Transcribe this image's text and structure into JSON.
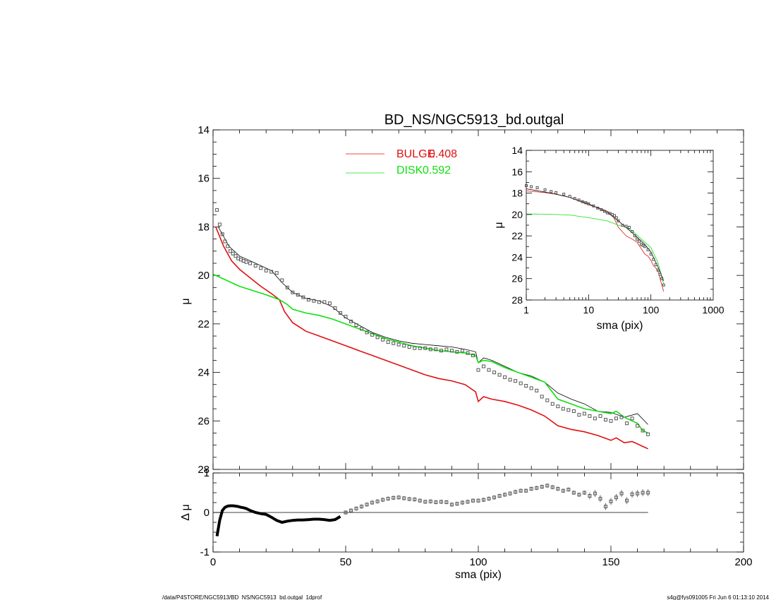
{
  "chart_data": [
    {
      "type": "line",
      "title": "BD_NS/NGC5913_bd.outgal",
      "ylabel": "μ",
      "xlim": [
        0,
        200
      ],
      "ylim": [
        28,
        14
      ],
      "yticks": [
        "14",
        "16",
        "18",
        "20",
        "22",
        "24",
        "26",
        "28"
      ],
      "legend": [
        {
          "label": "BULGE",
          "value": "0.408",
          "color": "#e01010"
        },
        {
          "label": "DISK",
          "value": "0.592",
          "color": "#10e010"
        }
      ],
      "series": [
        {
          "name": "data",
          "style": "squares",
          "color": "#555555",
          "x": [
            1.5,
            2.5,
            3.5,
            4.5,
            5.5,
            6.5,
            7.5,
            8.5,
            9.5,
            10.5,
            11.5,
            12.5,
            14,
            16,
            18,
            20,
            22,
            24,
            26,
            28,
            30,
            32,
            34,
            36,
            38,
            40,
            42,
            44,
            46,
            48,
            50,
            52,
            54,
            56,
            58,
            60,
            62,
            64,
            66,
            68,
            70,
            72,
            74,
            76,
            78,
            80,
            82,
            84,
            86,
            88,
            90,
            92,
            94,
            96,
            98,
            100,
            102,
            104,
            106,
            108,
            110,
            112,
            114,
            116,
            118,
            120,
            122,
            124,
            126,
            128,
            130,
            132,
            134,
            136,
            138,
            140,
            142,
            144,
            146,
            148,
            150,
            152,
            154,
            156,
            158,
            160,
            162,
            164
          ],
          "y": [
            17.3,
            17.9,
            18.3,
            18.6,
            18.8,
            19.0,
            19.1,
            19.2,
            19.3,
            19.35,
            19.4,
            19.45,
            19.5,
            19.6,
            19.7,
            19.8,
            19.85,
            19.9,
            20.2,
            20.5,
            20.7,
            20.8,
            20.9,
            21.0,
            21.05,
            21.1,
            21.1,
            21.15,
            21.35,
            21.55,
            21.7,
            21.9,
            22.05,
            22.2,
            22.35,
            22.45,
            22.55,
            22.65,
            22.75,
            22.8,
            22.85,
            22.9,
            22.95,
            23.0,
            23.0,
            23.0,
            23.05,
            23.05,
            23.1,
            23.05,
            23.1,
            23.15,
            23.1,
            23.2,
            23.3,
            23.9,
            23.75,
            23.9,
            24.0,
            24.1,
            24.2,
            24.3,
            24.35,
            24.45,
            24.55,
            24.65,
            24.75,
            25.0,
            25.15,
            25.3,
            25.4,
            25.5,
            25.55,
            25.6,
            25.75,
            25.7,
            25.8,
            25.9,
            25.8,
            25.95,
            26.0,
            25.9,
            25.85,
            26.1,
            25.9,
            26.2,
            26.4,
            26.55
          ]
        },
        {
          "name": "model",
          "style": "line",
          "color": "#000000",
          "x": [
            2,
            6,
            10,
            14,
            18,
            22,
            26,
            30,
            35,
            40,
            45,
            50,
            55,
            60,
            65,
            70,
            75,
            80,
            85,
            90,
            95,
            99,
            100,
            102,
            105,
            110,
            115,
            120,
            125,
            130,
            135,
            140,
            145,
            150,
            155,
            160,
            164
          ],
          "y": [
            18.0,
            18.8,
            19.2,
            19.4,
            19.6,
            19.8,
            20.3,
            20.7,
            20.95,
            21.05,
            21.3,
            21.75,
            22.05,
            22.35,
            22.55,
            22.7,
            22.8,
            22.85,
            22.9,
            22.95,
            23.05,
            23.15,
            23.6,
            23.4,
            23.5,
            23.75,
            24.0,
            24.15,
            24.4,
            24.85,
            25.1,
            25.3,
            25.6,
            25.65,
            25.85,
            25.7,
            26.15
          ]
        },
        {
          "name": "bulge",
          "style": "line",
          "color": "#e01010",
          "x": [
            1,
            4,
            7,
            10,
            14,
            18,
            22,
            25,
            27,
            30,
            35,
            40,
            45,
            50,
            55,
            60,
            65,
            70,
            75,
            80,
            85,
            90,
            95,
            99,
            100,
            102,
            105,
            110,
            115,
            120,
            125,
            130,
            135,
            140,
            145,
            150,
            152,
            155,
            158,
            160,
            162,
            164
          ],
          "y": [
            18.0,
            18.8,
            19.4,
            19.75,
            20.1,
            20.45,
            20.75,
            21.0,
            21.5,
            21.95,
            22.3,
            22.5,
            22.7,
            22.9,
            23.1,
            23.3,
            23.5,
            23.7,
            23.9,
            24.1,
            24.25,
            24.35,
            24.5,
            24.8,
            25.2,
            25.0,
            25.1,
            25.2,
            25.35,
            25.55,
            25.8,
            26.2,
            26.35,
            26.45,
            26.6,
            26.8,
            26.7,
            26.9,
            26.85,
            26.95,
            27.05,
            27.15
          ]
        },
        {
          "name": "disk",
          "style": "line",
          "color": "#10e010",
          "x": [
            0,
            10,
            20,
            25,
            28,
            30,
            35,
            40,
            45,
            50,
            55,
            60,
            65,
            70,
            75,
            80,
            85,
            90,
            95,
            99,
            100,
            102,
            105,
            110,
            115,
            120,
            125,
            130,
            135,
            140,
            145,
            150,
            152,
            155,
            158,
            160,
            162,
            164
          ],
          "y": [
            19.95,
            20.45,
            20.8,
            21.0,
            21.2,
            21.4,
            21.55,
            21.65,
            21.8,
            22.0,
            22.2,
            22.4,
            22.6,
            22.75,
            22.9,
            23.0,
            23.1,
            23.15,
            23.2,
            23.3,
            23.6,
            23.5,
            23.55,
            23.8,
            24.0,
            24.2,
            24.4,
            25.1,
            25.3,
            25.5,
            25.6,
            25.7,
            25.6,
            25.85,
            26.0,
            26.1,
            26.4,
            26.5
          ]
        }
      ]
    },
    {
      "type": "line",
      "xlabel": "sma (pix)",
      "ylabel": "μ",
      "xscale": "log",
      "xlim": [
        1,
        1000
      ],
      "ylim": [
        28,
        14
      ],
      "xticks": [
        "1",
        "10",
        "100",
        "1000"
      ],
      "yticks": [
        "14",
        "16",
        "18",
        "20",
        "22",
        "24",
        "26",
        "28"
      ],
      "series": [
        {
          "name": "data",
          "style": "squares",
          "color": "#555555",
          "x": [
            1.0,
            1.2,
            1.5,
            2,
            2.5,
            3,
            4,
            5,
            6,
            7,
            8,
            9,
            10,
            12,
            14,
            16,
            18,
            20,
            22,
            24,
            26,
            28,
            30,
            35,
            40,
            45,
            50,
            55,
            60,
            65,
            70,
            75,
            80,
            90,
            100,
            110,
            120,
            130,
            140,
            150,
            160
          ],
          "y": [
            17.3,
            17.4,
            17.5,
            17.7,
            17.85,
            17.95,
            18.1,
            18.3,
            18.5,
            18.65,
            18.8,
            18.9,
            19.0,
            19.2,
            19.4,
            19.55,
            19.7,
            19.85,
            19.9,
            20.0,
            20.1,
            20.3,
            20.6,
            21.0,
            21.1,
            21.2,
            21.6,
            22.0,
            22.3,
            22.5,
            22.8,
            22.9,
            23.0,
            23.3,
            23.7,
            24.2,
            24.7,
            25.2,
            25.6,
            26.0,
            26.6
          ]
        },
        {
          "name": "model",
          "style": "line",
          "color": "#000000",
          "x": [
            1,
            2,
            3,
            5,
            10,
            20,
            30,
            50,
            80,
            100,
            130,
            160
          ],
          "y": [
            17.6,
            17.9,
            18.1,
            18.4,
            19.0,
            19.8,
            20.6,
            21.7,
            22.8,
            23.5,
            24.9,
            26.2
          ]
        },
        {
          "name": "bulge",
          "style": "line",
          "color": "#e01010",
          "x": [
            1,
            2,
            3,
            5,
            10,
            15,
            20,
            25,
            30,
            40,
            50,
            60,
            70,
            80,
            90,
            100,
            110,
            120,
            130,
            140,
            150,
            160
          ],
          "y": [
            17.8,
            17.95,
            18.1,
            18.4,
            19.1,
            19.4,
            19.7,
            20.2,
            21.2,
            22.0,
            22.3,
            22.6,
            23.2,
            23.7,
            23.9,
            24.3,
            24.8,
            25.0,
            25.3,
            26.0,
            26.6,
            27.2
          ]
        },
        {
          "name": "disk",
          "style": "line",
          "color": "#10e010",
          "x": [
            1,
            2,
            3,
            5,
            10,
            20,
            30,
            40,
            50,
            70,
            100,
            130,
            160
          ],
          "y": [
            19.95,
            19.97,
            20.0,
            20.05,
            20.3,
            20.6,
            21.0,
            21.2,
            21.5,
            22.3,
            23.1,
            24.5,
            26.5
          ]
        }
      ]
    },
    {
      "type": "scatter",
      "xlabel": "sma (pix)",
      "ylabel": "Δ μ",
      "xlim": [
        0,
        200
      ],
      "ylim": [
        -1,
        1
      ],
      "xticks": [
        "0",
        "50",
        "100",
        "150",
        "200"
      ],
      "yticks": [
        "1",
        "0",
        "-1"
      ],
      "series": [
        {
          "name": "residual",
          "color": "#000000",
          "x": [
            1.5,
            2.5,
            3.5,
            4.5,
            5.5,
            6.5,
            7.5,
            8.5,
            9.5,
            10.5,
            11.5,
            12.5,
            14,
            16,
            18,
            20,
            22,
            24,
            26,
            28,
            30,
            32,
            34,
            36,
            38,
            40,
            42,
            44,
            46,
            48,
            50,
            52,
            54,
            56,
            58,
            60,
            62,
            64,
            66,
            68,
            70,
            72,
            74,
            76,
            78,
            80,
            82,
            84,
            86,
            88,
            90,
            92,
            94,
            96,
            98,
            100,
            102,
            104,
            106,
            108,
            110,
            112,
            114,
            116,
            118,
            120,
            122,
            124,
            126,
            128,
            130,
            132,
            134,
            136,
            138,
            140,
            142,
            144,
            146,
            148,
            150,
            152,
            154,
            156,
            158,
            160,
            162,
            164
          ],
          "y": [
            -0.6,
            -0.2,
            0.05,
            0.13,
            0.16,
            0.17,
            0.17,
            0.16,
            0.15,
            0.13,
            0.12,
            0.1,
            0.05,
            0.0,
            -0.03,
            -0.05,
            -0.12,
            -0.2,
            -0.25,
            -0.22,
            -0.2,
            -0.19,
            -0.19,
            -0.18,
            -0.17,
            -0.17,
            -0.18,
            -0.2,
            -0.18,
            -0.1,
            0.0,
            0.05,
            0.1,
            0.15,
            0.2,
            0.25,
            0.28,
            0.32,
            0.35,
            0.37,
            0.38,
            0.36,
            0.34,
            0.33,
            0.3,
            0.27,
            0.28,
            0.26,
            0.27,
            0.26,
            0.2,
            0.22,
            0.25,
            0.27,
            0.3,
            0.3,
            0.32,
            0.35,
            0.38,
            0.42,
            0.45,
            0.48,
            0.52,
            0.55,
            0.55,
            0.6,
            0.62,
            0.65,
            0.68,
            0.64,
            0.6,
            0.55,
            0.58,
            0.5,
            0.45,
            0.5,
            0.42,
            0.48,
            0.35,
            0.15,
            0.28,
            0.38,
            0.48,
            0.3,
            0.46,
            0.48,
            0.5,
            0.5
          ]
        }
      ]
    }
  ],
  "footer": {
    "left": "/data/P4STORE/NGC5913/BD_NS/NGC5913_bd.outgal_1dprof",
    "right": "s4g@fys091005  Fri Jun  6 01:13:10 2014"
  }
}
